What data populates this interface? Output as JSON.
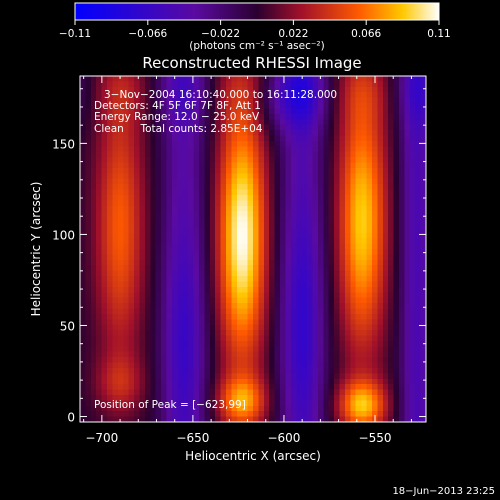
{
  "colorbar": {
    "ticks": [
      "-0.11",
      "-0.066",
      "-0.022",
      "0.022",
      "0.066",
      "0.11"
    ],
    "unit_label": "(photons cm⁻² s⁻¹ asec⁻²)"
  },
  "chart_data": {
    "type": "heatmap",
    "title": "Reconstructed RHESSI Image",
    "xlabel": "Heliocentric X (arcsec)",
    "ylabel": "Heliocentric Y (arcsec)",
    "xlim": [
      -712,
      -522
    ],
    "ylim": [
      -3,
      187
    ],
    "x_ticks": [
      -700,
      -650,
      -600,
      -550
    ],
    "y_ticks": [
      0,
      50,
      100,
      150
    ],
    "x_tick_labels": [
      "−700",
      "−650",
      "−600",
      "−550"
    ],
    "y_tick_labels": [
      "0",
      "50",
      "100",
      "150"
    ],
    "colorscale_range": [
      -0.11,
      0.11
    ],
    "annotations": [
      "3−Nov−2004 16:10:40.000 to 16:11:28.000",
      "Detectors: 4F 5F 6F 7F 8F, Att 1",
      "Energy Range: 12.0 − 25.0 keV",
      "Clean     Total counts: 2.85E+04"
    ],
    "peak_label": "Position of Peak = [−623,99]",
    "peak": [
      -623,
      99
    ],
    "ridges": [
      {
        "x": -690,
        "y": 104,
        "peak": 0.06
      },
      {
        "x": -623,
        "y": 99,
        "peak": 0.11
      },
      {
        "x": -557,
        "y": 107,
        "peak": 0.09
      }
    ]
  },
  "footer": {
    "timestamp": "18−Jun−2013 23:25"
  }
}
